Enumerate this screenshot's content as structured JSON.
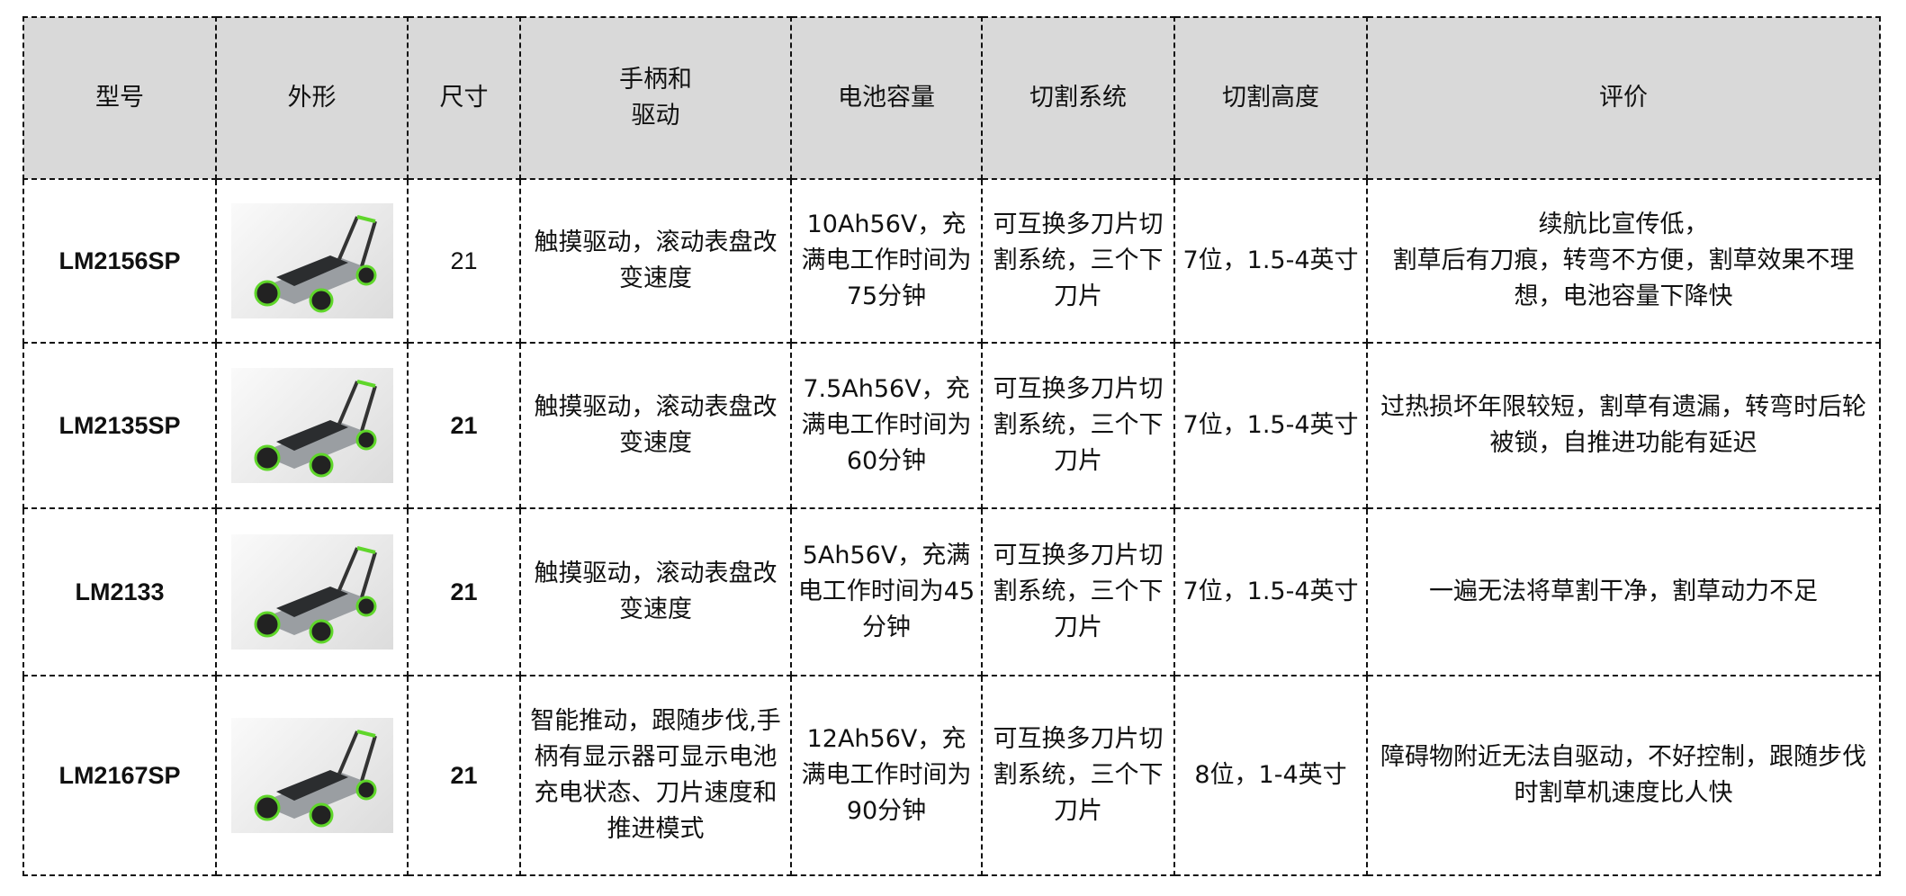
{
  "table": {
    "headers": [
      "型号",
      "外形",
      "尺寸",
      "手柄和\n驱动",
      "电池容量",
      "切割系统",
      "切割高度",
      "评价"
    ],
    "rows": [
      {
        "model": "LM2156SP",
        "image": "lawn-mower-photo",
        "size": "21",
        "handle_drive": "触摸驱动，滚动表盘改变速度",
        "battery": "10Ah56V，充满电工作时间为75分钟",
        "cutting_system": "可互换多刀片切割系统，三个下刀片",
        "cutting_height": "7位，1.5-4英寸",
        "review": "续航比宣传低，\n割草后有刀痕，转弯不方便，割草效果不理想，电池容量下降快"
      },
      {
        "model": "LM2135SP",
        "image": "lawn-mower-photo",
        "size": "21",
        "handle_drive": "触摸驱动，滚动表盘改变速度",
        "battery": "7.5Ah56V，充满电工作时间为60分钟",
        "cutting_system": "可互换多刀片切割系统，三个下刀片",
        "cutting_height": "7位，1.5-4英寸",
        "review": "过热损坏年限较短，割草有遗漏，转弯时后轮被锁，自推进功能有延迟"
      },
      {
        "model": "LM2133",
        "image": "lawn-mower-photo",
        "size": "21",
        "handle_drive": "触摸驱动，滚动表盘改变速度",
        "battery": "5Ah56V，充满电工作时间为45分钟",
        "cutting_system": "可互换多刀片切割系统，三个下刀片",
        "cutting_height": "7位，1.5-4英寸",
        "review": "一遍无法将草割干净，割草动力不足"
      },
      {
        "model": "LM2167SP",
        "image": "lawn-mower-photo",
        "size": "21",
        "handle_drive": "智能推动，跟随步伐,手柄有显示器可显示电池充电状态、刀片速度和推进模式",
        "battery": "12Ah56V，充满电工作时间为90分钟",
        "cutting_system": "可互换多刀片切割系统，三个下刀片",
        "cutting_height": "8位，1-4英寸",
        "review": "障碍物附近无法自驱动，不好控制，跟随步伐时割草机速度比人快"
      }
    ]
  },
  "colors": {
    "header_bg": "#d9d9d9",
    "accent_green": "#5fd62a"
  }
}
